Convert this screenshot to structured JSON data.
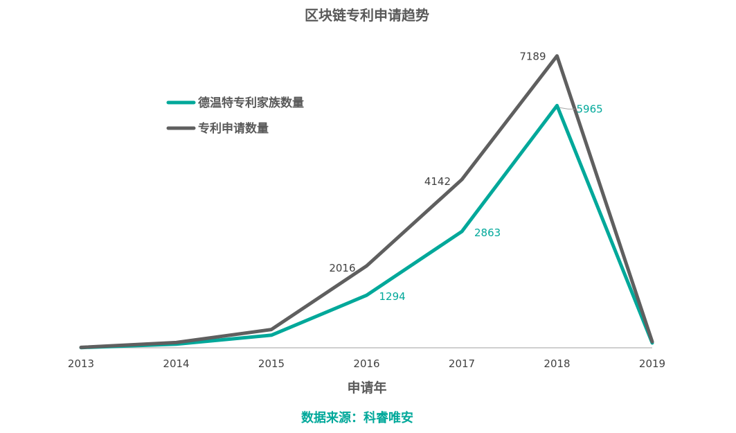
{
  "chart_data": {
    "type": "line",
    "title": "区块链专利申请趋势",
    "xlabel": "申请年",
    "ylabel": "",
    "x": [
      "2013",
      "2014",
      "2015",
      "2016",
      "2017",
      "2018",
      "2019"
    ],
    "ylim": [
      0,
      7900
    ],
    "series": [
      {
        "name": "德温特专利家族数量",
        "color": "#00A89A",
        "values": [
          5,
          90,
          310,
          1294,
          2863,
          5965,
          120
        ],
        "labels": [
          null,
          null,
          null,
          "1294",
          "2863",
          "5965",
          null
        ]
      },
      {
        "name": "专利申请数量",
        "color": "#5F5F5F",
        "values": [
          10,
          130,
          450,
          2016,
          4142,
          7189,
          150
        ],
        "labels": [
          null,
          null,
          null,
          "2016",
          "4142",
          "7189",
          null
        ]
      }
    ],
    "legend_position": "top-left",
    "grid": false
  },
  "source_text": "数据来源：科睿唯安",
  "colors": {
    "source": "#00A89A",
    "axis": "#BFBFBF"
  }
}
